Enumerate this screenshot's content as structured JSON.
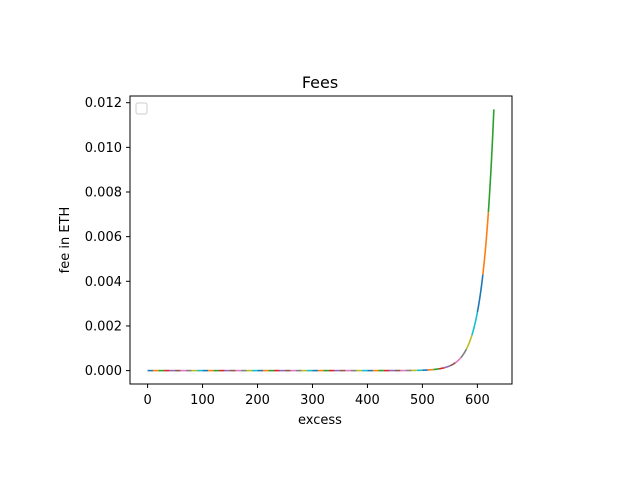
{
  "chart_data": {
    "type": "line",
    "title": "Fees",
    "xlabel": "excess",
    "ylabel": "fee in ETH",
    "xlim": [
      -32,
      663
    ],
    "ylim": [
      -0.0006,
      0.0123
    ],
    "xticks": [
      0,
      100,
      200,
      300,
      400,
      500,
      600
    ],
    "xtick_labels": [
      "0",
      "100",
      "200",
      "300",
      "400",
      "500",
      "600"
    ],
    "yticks": [
      0.0,
      0.002,
      0.004,
      0.006,
      0.008,
      0.01,
      0.012
    ],
    "ytick_labels": [
      "0.000",
      "0.002",
      "0.004",
      "0.006",
      "0.008",
      "0.010",
      "0.012"
    ],
    "grid": false,
    "legend": {
      "placement": "top-left",
      "entries": []
    },
    "curve": {
      "formula": "fee = 0.0117 * exp((excess - 630) / 20)",
      "x_start": 0,
      "x_end": 630,
      "segment_length": 10
    },
    "segments": [
      {
        "x": [
          0,
          600
        ],
        "color": "#1f77b4"
      },
      {
        "x": [
          600,
          610
        ],
        "color": "#1f77b4"
      },
      {
        "x": [
          610,
          620
        ],
        "color": "#ff7f0e"
      },
      {
        "x": [
          620,
          630
        ],
        "color": "#2ca02c"
      }
    ],
    "colors": [
      "#1f77b4",
      "#ff7f0e",
      "#2ca02c",
      "#d62728",
      "#9467bd",
      "#8c564b",
      "#e377c2",
      "#7f7f7f",
      "#bcbd22",
      "#17becf"
    ]
  }
}
